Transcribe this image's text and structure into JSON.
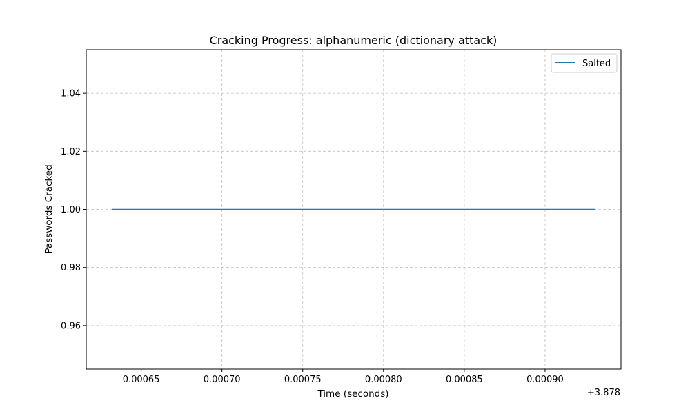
{
  "chart_data": {
    "type": "line",
    "title": "Cracking Progress: alphanumeric (dictionary attack)",
    "xlabel": "Time (seconds)",
    "ylabel": "Passwords Cracked",
    "x_offset_label": "+3.878",
    "xlim": [
      0.000616,
      0.000947
    ],
    "ylim": [
      0.945,
      1.055
    ],
    "x_ticks": [
      0.00065,
      0.0007,
      0.00075,
      0.0008,
      0.00085,
      0.0009
    ],
    "x_tick_labels": [
      "0.00065",
      "0.00070",
      "0.00075",
      "0.00080",
      "0.00085",
      "0.00090"
    ],
    "y_ticks": [
      0.96,
      0.98,
      1.0,
      1.02,
      1.04
    ],
    "y_tick_labels": [
      "0.96",
      "0.98",
      "1.00",
      "1.02",
      "1.04"
    ],
    "grid": true,
    "legend_position": "top-right",
    "series": [
      {
        "name": "Salted",
        "color": "#1f77b4",
        "x": [
          0.000632,
          0.000931
        ],
        "y": [
          1.0,
          1.0
        ]
      }
    ]
  }
}
